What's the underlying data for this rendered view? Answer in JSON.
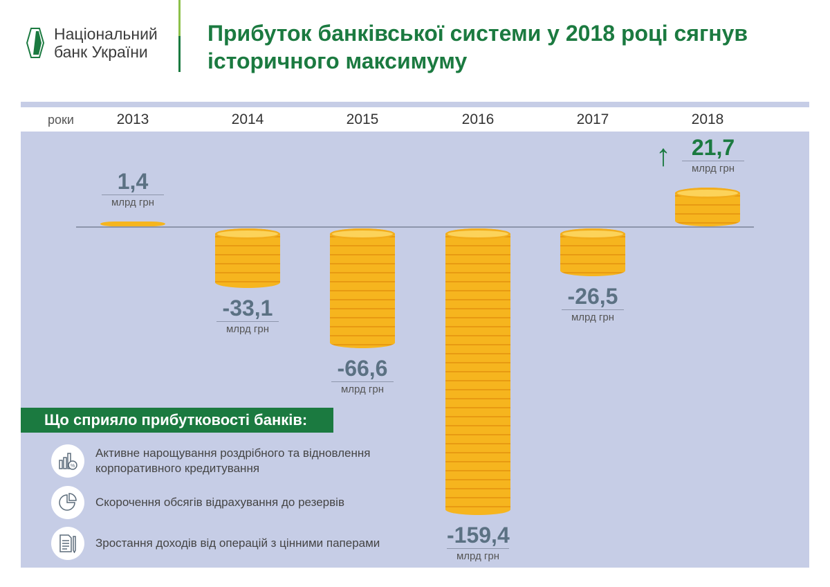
{
  "header": {
    "logo_line1": "Національний",
    "logo_line2": "банк України",
    "title": "Прибуток банківської системи у 2018 році сягнув історичного максимуму"
  },
  "chart_data": {
    "type": "bar",
    "title": "Прибуток банківської системи у 2018 році сягнув історичного максимуму",
    "xlabel": "роки",
    "ylabel": "млрд грн",
    "categories": [
      "2013",
      "2014",
      "2015",
      "2016",
      "2017",
      "2018"
    ],
    "values": [
      1.4,
      -33.1,
      -66.6,
      -159.4,
      -26.5,
      21.7
    ],
    "value_labels": [
      "1,4",
      "-33,1",
      "-66,6",
      "-159,4",
      "-26,5",
      "21,7"
    ],
    "unit": "млрд грн",
    "ylim": [
      -160,
      25
    ],
    "highlight": "2018"
  },
  "factors": {
    "heading": "Що сприяло прибутковості банків:",
    "items": [
      {
        "text": "Активне нарощування роздрібного та відновлення корпоративного кредитування",
        "icon": "chart-percent-icon"
      },
      {
        "text": "Скорочення обсягів відрахування до резервів",
        "icon": "pie-chart-icon"
      },
      {
        "text": "Зростання доходів від операцій з цінними паперами",
        "icon": "document-pen-icon"
      }
    ]
  },
  "colors": {
    "brand": "#1b7a40",
    "panel": "#c6cde6",
    "coin": "#f6b51e"
  }
}
